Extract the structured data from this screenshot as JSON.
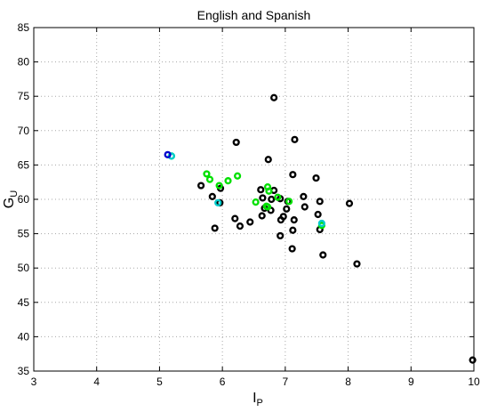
{
  "chart_data": {
    "type": "scatter",
    "title": "English and Spanish",
    "xlabel": {
      "main": "I",
      "sub": "P"
    },
    "ylabel": {
      "main": "G",
      "sub": "U"
    },
    "xlim": [
      3,
      10
    ],
    "ylim": [
      35,
      85
    ],
    "xticks": [
      3,
      4,
      5,
      6,
      7,
      8,
      9,
      10
    ],
    "yticks": [
      35,
      40,
      45,
      50,
      55,
      60,
      65,
      70,
      75,
      80,
      85
    ],
    "grid": true,
    "series": [
      {
        "color": "#000000",
        "points": [
          [
            6.82,
            74.8
          ],
          [
            7.15,
            68.7
          ],
          [
            6.22,
            68.3
          ],
          [
            6.73,
            65.8
          ],
          [
            7.12,
            63.6
          ],
          [
            7.49,
            63.1
          ],
          [
            5.66,
            62.0
          ],
          [
            5.97,
            61.6
          ],
          [
            6.61,
            61.4
          ],
          [
            6.82,
            61.3
          ],
          [
            6.64,
            60.2
          ],
          [
            6.78,
            60.0
          ],
          [
            6.92,
            60.1
          ],
          [
            5.84,
            60.4
          ],
          [
            7.29,
            60.4
          ],
          [
            7.04,
            59.7
          ],
          [
            7.55,
            59.7
          ],
          [
            5.96,
            59.5
          ],
          [
            8.02,
            59.4
          ],
          [
            7.31,
            58.9
          ],
          [
            7.02,
            58.6
          ],
          [
            6.67,
            58.7
          ],
          [
            6.77,
            58.4
          ],
          [
            7.52,
            57.8
          ],
          [
            6.63,
            57.6
          ],
          [
            6.97,
            57.5
          ],
          [
            6.2,
            57.2
          ],
          [
            7.14,
            57.0
          ],
          [
            6.93,
            57.0
          ],
          [
            6.44,
            56.7
          ],
          [
            6.28,
            56.1
          ],
          [
            5.88,
            55.8
          ],
          [
            7.12,
            55.5
          ],
          [
            7.55,
            55.6
          ],
          [
            6.92,
            54.7
          ],
          [
            7.6,
            51.9
          ],
          [
            7.11,
            52.8
          ],
          [
            8.14,
            50.6
          ],
          [
            9.98,
            36.6
          ]
        ]
      },
      {
        "color": "#00e000",
        "points": [
          [
            5.19,
            66.3
          ],
          [
            5.75,
            63.7
          ],
          [
            5.8,
            62.9
          ],
          [
            6.24,
            63.4
          ],
          [
            6.09,
            62.7
          ],
          [
            5.95,
            62.0
          ],
          [
            6.72,
            61.8
          ],
          [
            6.74,
            61.2
          ],
          [
            6.88,
            60.3
          ],
          [
            7.06,
            59.7
          ],
          [
            6.53,
            59.6
          ],
          [
            6.7,
            59.0
          ],
          [
            6.72,
            58.9
          ],
          [
            7.58,
            56.2
          ]
        ]
      },
      {
        "color": "#00cccc",
        "points": [
          [
            5.19,
            66.3
          ],
          [
            5.93,
            59.5
          ],
          [
            7.58,
            56.5
          ]
        ]
      },
      {
        "color": "#0000cc",
        "points": [
          [
            5.13,
            66.5
          ]
        ]
      }
    ]
  }
}
